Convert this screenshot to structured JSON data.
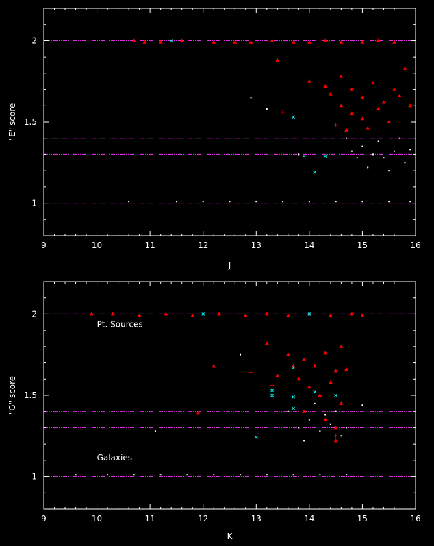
{
  "chart_data": [
    {
      "type": "scatter",
      "xlabel": "J",
      "ylabel": "\"E\" score",
      "xlim": [
        9,
        16
      ],
      "ylim": [
        0.8,
        2.2
      ],
      "xticks": [
        "9",
        "10",
        "11",
        "12",
        "13",
        "14",
        "15",
        "16"
      ],
      "yticks": [
        "1",
        "1.5",
        "2"
      ],
      "reference_lines": [
        1.0,
        1.3,
        1.4,
        2.0
      ],
      "annotations": [],
      "series": [
        {
          "marker": "triangle",
          "color": "#ff0000",
          "points": [
            [
              10.7,
              2.0
            ],
            [
              10.9,
              1.99
            ],
            [
              11.2,
              1.99
            ],
            [
              11.6,
              2.0
            ],
            [
              12.2,
              1.99
            ],
            [
              12.6,
              1.99
            ],
            [
              12.9,
              1.99
            ],
            [
              13.3,
              2.0
            ],
            [
              13.7,
              1.99
            ],
            [
              14.0,
              1.99
            ],
            [
              14.3,
              2.0
            ],
            [
              14.6,
              1.99
            ],
            [
              15.0,
              1.99
            ],
            [
              15.3,
              2.0
            ],
            [
              15.6,
              1.99
            ],
            [
              13.4,
              1.88
            ],
            [
              14.0,
              1.75
            ],
            [
              14.3,
              1.72
            ],
            [
              14.6,
              1.78
            ],
            [
              14.8,
              1.7
            ],
            [
              15.0,
              1.65
            ],
            [
              15.2,
              1.74
            ],
            [
              15.4,
              1.62
            ],
            [
              15.6,
              1.7
            ],
            [
              15.8,
              1.83
            ],
            [
              14.6,
              1.6
            ],
            [
              14.8,
              1.55
            ],
            [
              15.0,
              1.52
            ],
            [
              15.3,
              1.58
            ],
            [
              15.5,
              1.5
            ],
            [
              14.7,
              1.45
            ],
            [
              15.1,
              1.46
            ],
            [
              15.7,
              1.66
            ],
            [
              14.4,
              1.67
            ],
            [
              15.9,
              1.6
            ]
          ]
        },
        {
          "marker": "plus",
          "color": "#ff0000",
          "points": [
            [
              13.5,
              1.56
            ],
            [
              14.5,
              1.48
            ]
          ]
        },
        {
          "marker": "cross",
          "color": "#00ffff",
          "points": [
            [
              11.4,
              2.0
            ],
            [
              13.7,
              1.53
            ],
            [
              13.9,
              1.29
            ],
            [
              14.1,
              1.19
            ],
            [
              14.3,
              1.29
            ]
          ]
        },
        {
          "marker": "dot",
          "color": "#ffffff",
          "points": [
            [
              10.6,
              1.01
            ],
            [
              11.5,
              1.01
            ],
            [
              12.0,
              1.01
            ],
            [
              12.5,
              1.01
            ],
            [
              13.0,
              1.01
            ],
            [
              13.5,
              1.01
            ],
            [
              14.0,
              1.01
            ],
            [
              14.5,
              1.01
            ],
            [
              15.0,
              1.01
            ],
            [
              15.5,
              1.01
            ],
            [
              15.9,
              1.01
            ],
            [
              13.2,
              1.58
            ],
            [
              12.9,
              1.65
            ],
            [
              14.7,
              1.4
            ],
            [
              15.0,
              1.35
            ],
            [
              15.2,
              1.3
            ],
            [
              15.4,
              1.28
            ],
            [
              15.6,
              1.32
            ],
            [
              15.8,
              1.25
            ],
            [
              15.1,
              1.22
            ],
            [
              14.9,
              1.28
            ],
            [
              15.3,
              1.38
            ],
            [
              15.5,
              1.2
            ],
            [
              15.7,
              1.4
            ],
            [
              15.9,
              1.33
            ],
            [
              14.8,
              1.32
            ],
            [
              13.8,
              1.3
            ]
          ]
        }
      ]
    },
    {
      "type": "scatter",
      "xlabel": "K",
      "ylabel": "\"G\" score",
      "xlim": [
        9,
        16
      ],
      "ylim": [
        0.8,
        2.2
      ],
      "xticks": [
        "9",
        "10",
        "11",
        "12",
        "13",
        "14",
        "15",
        "16"
      ],
      "yticks": [
        "1",
        "1.5",
        "2"
      ],
      "reference_lines": [
        1.0,
        1.3,
        1.4,
        2.0
      ],
      "annotations": [
        {
          "text": "Pt. Sources",
          "x": 10.0,
          "y": 1.92
        },
        {
          "text": "Galaxies",
          "x": 10.0,
          "y": 1.1
        }
      ],
      "series": [
        {
          "marker": "triangle",
          "color": "#ff0000",
          "points": [
            [
              9.9,
              2.0
            ],
            [
              10.3,
              2.0
            ],
            [
              10.8,
              1.99
            ],
            [
              11.3,
              2.0
            ],
            [
              11.8,
              1.99
            ],
            [
              12.3,
              2.0
            ],
            [
              12.8,
              1.99
            ],
            [
              13.2,
              2.0
            ],
            [
              13.6,
              1.99
            ],
            [
              14.0,
              2.0
            ],
            [
              14.4,
              1.99
            ],
            [
              14.8,
              2.0
            ],
            [
              15.0,
              1.99
            ],
            [
              12.2,
              1.68
            ],
            [
              13.2,
              1.82
            ],
            [
              13.6,
              1.75
            ],
            [
              13.9,
              1.72
            ],
            [
              14.1,
              1.68
            ],
            [
              14.3,
              1.76
            ],
            [
              14.5,
              1.65
            ],
            [
              14.6,
              1.8
            ],
            [
              13.8,
              1.6
            ],
            [
              14.0,
              1.55
            ],
            [
              14.2,
              1.5
            ],
            [
              14.4,
              1.58
            ],
            [
              14.6,
              1.45
            ],
            [
              13.9,
              1.4
            ],
            [
              14.3,
              1.35
            ],
            [
              14.5,
              1.3
            ],
            [
              14.7,
              1.66
            ],
            [
              13.7,
              1.68
            ],
            [
              13.4,
              1.62
            ],
            [
              14.5,
              1.22
            ]
          ]
        },
        {
          "marker": "plus",
          "color": "#ff0000",
          "points": [
            [
              11.9,
              1.39
            ],
            [
              12.9,
              1.64
            ],
            [
              13.3,
              1.56
            ],
            [
              14.5,
              1.25
            ]
          ]
        },
        {
          "marker": "cross",
          "color": "#00ffff",
          "points": [
            [
              13.0,
              1.24
            ],
            [
              13.3,
              1.5
            ],
            [
              13.3,
              1.53
            ],
            [
              13.7,
              1.49
            ],
            [
              13.7,
              1.42
            ],
            [
              13.7,
              1.67
            ],
            [
              14.1,
              1.52
            ],
            [
              14.5,
              1.5
            ],
            [
              14.0,
              2.0
            ],
            [
              12.0,
              2.0
            ]
          ]
        },
        {
          "marker": "dot",
          "color": "#ffffff",
          "points": [
            [
              9.6,
              1.01
            ],
            [
              10.2,
              1.01
            ],
            [
              10.7,
              1.01
            ],
            [
              11.2,
              1.01
            ],
            [
              11.7,
              1.01
            ],
            [
              12.2,
              1.01
            ],
            [
              12.7,
              1.01
            ],
            [
              13.2,
              1.01
            ],
            [
              13.7,
              1.01
            ],
            [
              14.2,
              1.01
            ],
            [
              14.7,
              1.01
            ],
            [
              11.1,
              1.28
            ],
            [
              12.7,
              1.75
            ],
            [
              13.6,
              1.4
            ],
            [
              13.8,
              1.3
            ],
            [
              14.0,
              1.35
            ],
            [
              14.2,
              1.28
            ],
            [
              14.4,
              1.32
            ],
            [
              14.6,
              1.25
            ],
            [
              14.1,
              1.45
            ],
            [
              14.3,
              1.38
            ],
            [
              13.9,
              1.22
            ],
            [
              14.5,
              1.4
            ],
            [
              14.7,
              1.3
            ],
            [
              15.0,
              1.44
            ]
          ]
        }
      ]
    }
  ]
}
